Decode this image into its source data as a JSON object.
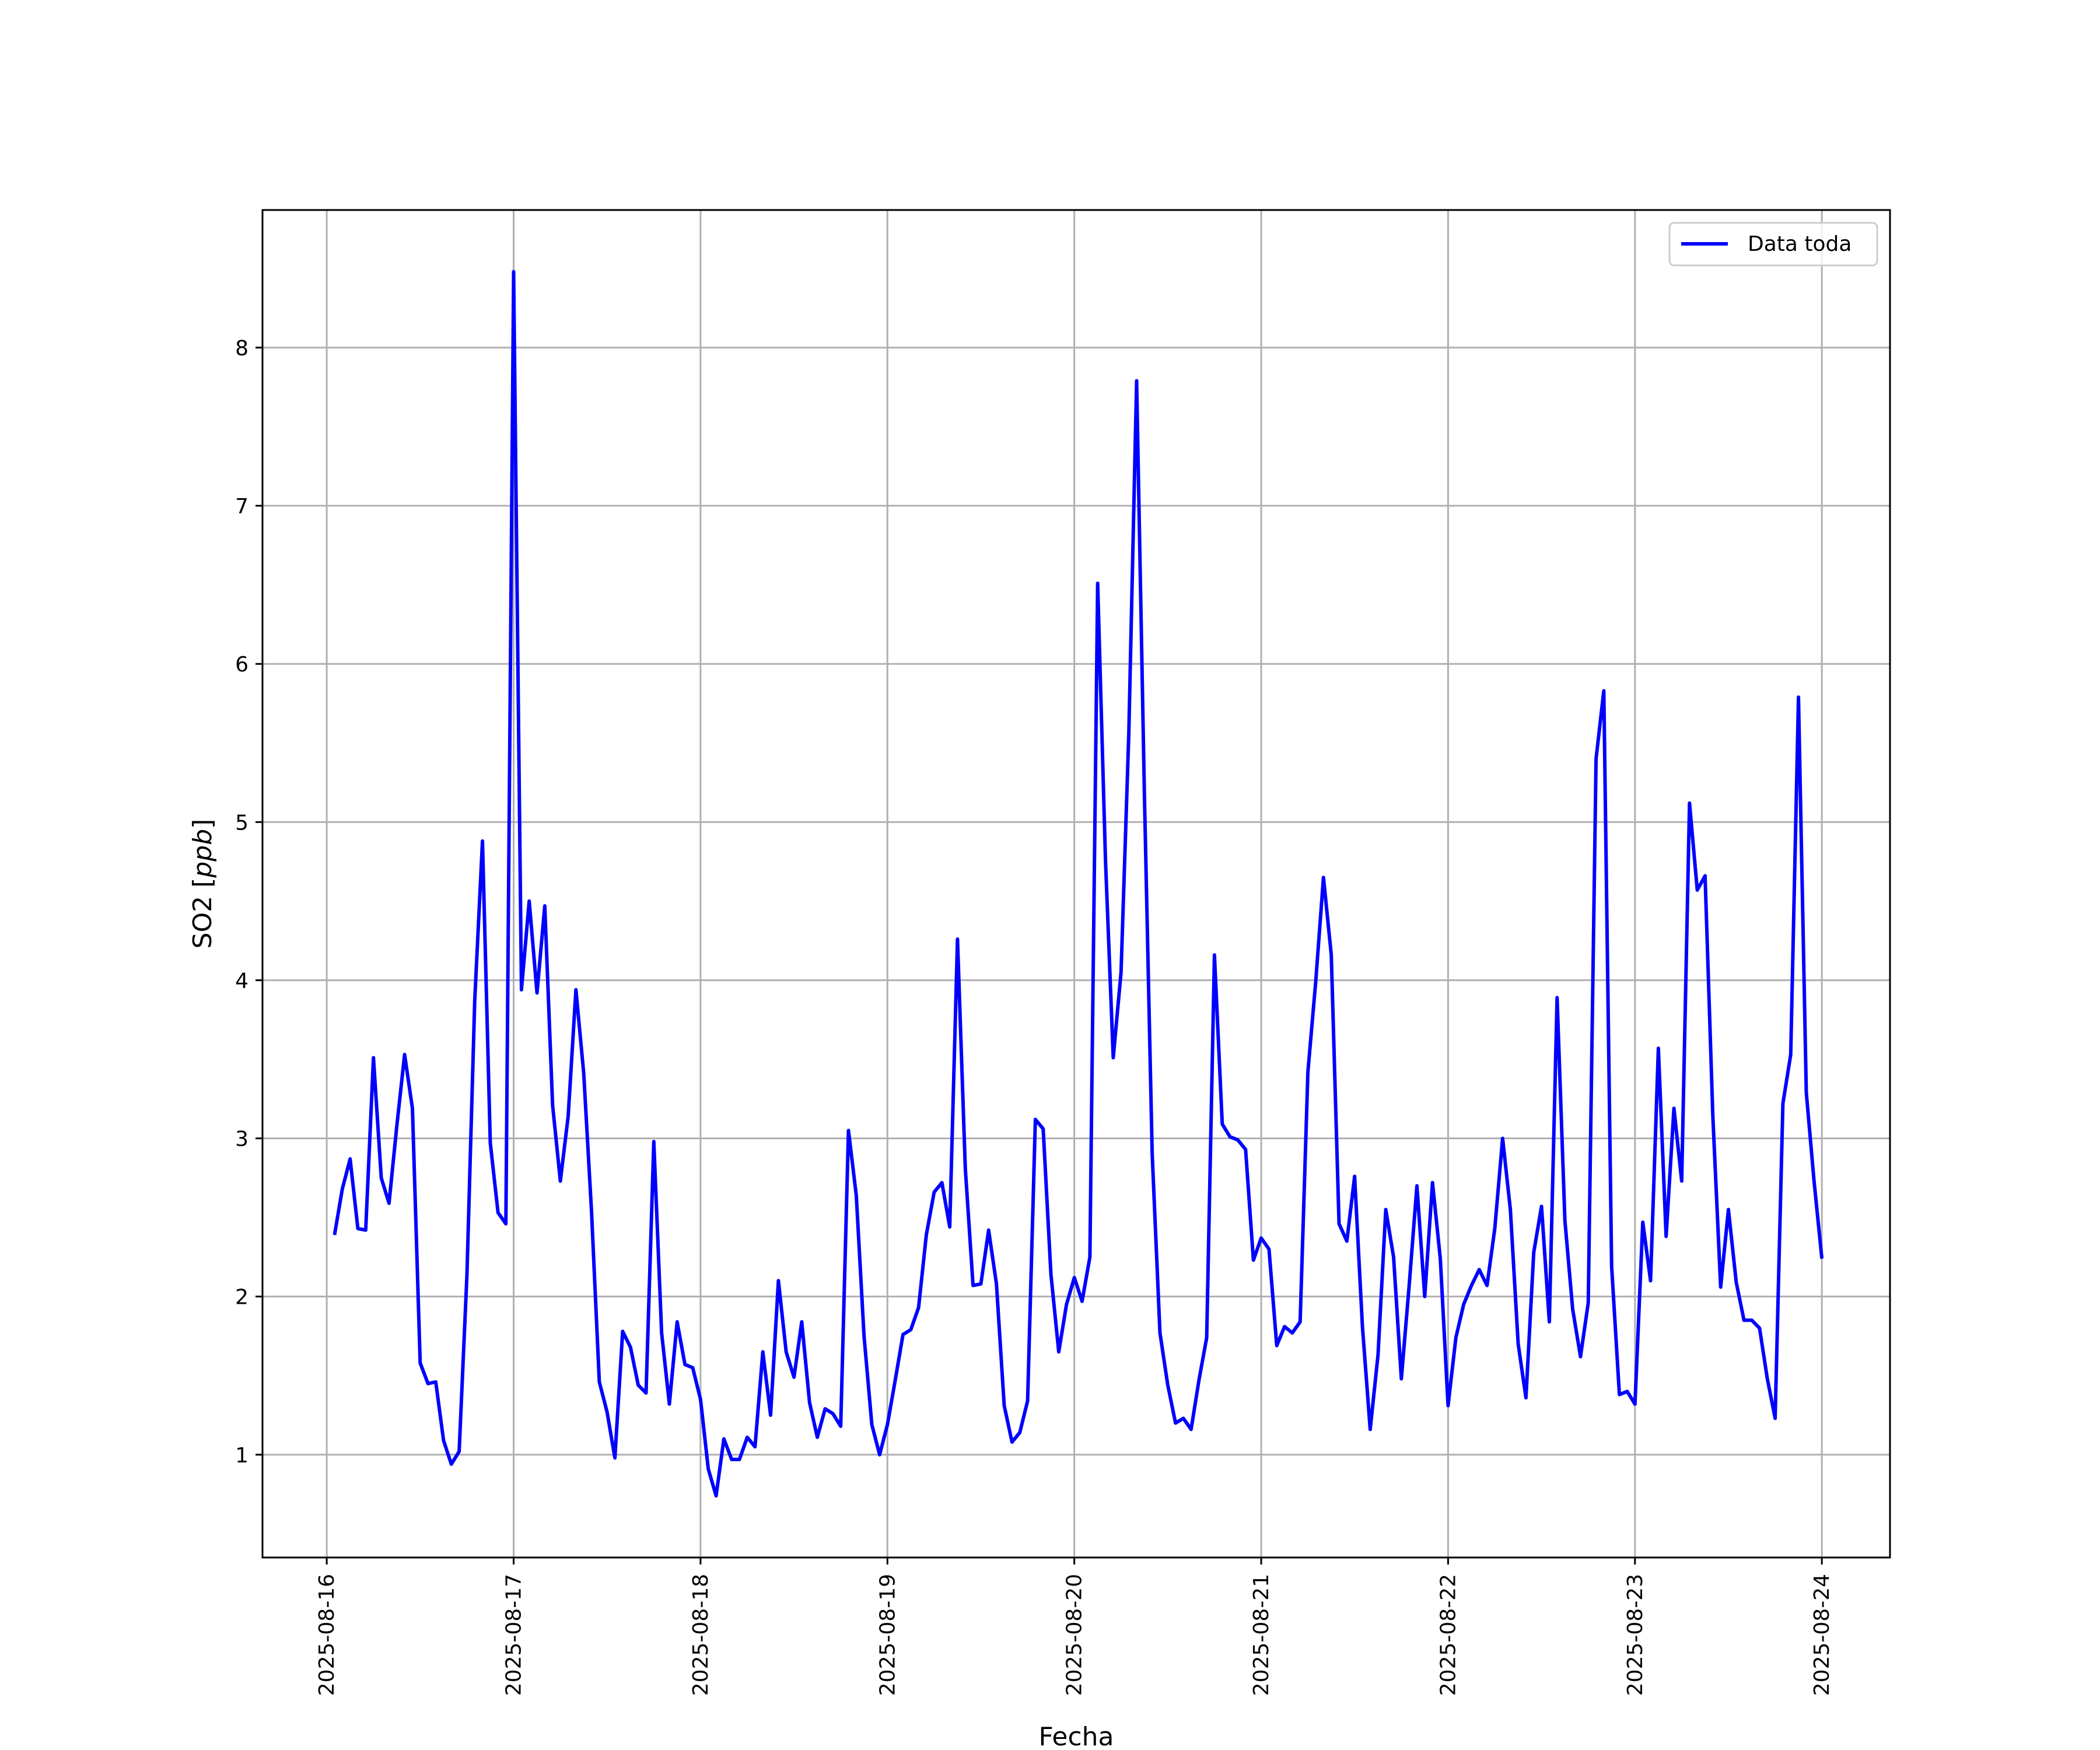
{
  "chart_data": {
    "type": "line",
    "title": "",
    "xlabel": "Fecha",
    "ylabel": "SO2 [ppb]",
    "ylabel_main": "SO2 ",
    "ylabel_unit": "ppb",
    "grid": true,
    "legend_position": "top-right",
    "x_ticks": [
      "2025-08-16",
      "2025-08-17",
      "2025-08-18",
      "2025-08-19",
      "2025-08-20",
      "2025-08-21",
      "2025-08-22",
      "2025-08-23",
      "2025-08-24"
    ],
    "y_ticks": [
      1,
      2,
      3,
      4,
      5,
      6,
      7,
      8
    ],
    "xlim": [
      "2025-08-15T15:45",
      "2025-08-24T08:45"
    ],
    "ylim": [
      0.35,
      8.87
    ],
    "series": [
      {
        "name": "Data toda",
        "color": "#0000ff",
        "x": [
          "2025-08-16T01:00",
          "2025-08-16T02:00",
          "2025-08-16T03:00",
          "2025-08-16T04:00",
          "2025-08-16T05:00",
          "2025-08-16T06:00",
          "2025-08-16T07:00",
          "2025-08-16T08:00",
          "2025-08-16T09:00",
          "2025-08-16T10:00",
          "2025-08-16T11:00",
          "2025-08-16T12:00",
          "2025-08-16T13:00",
          "2025-08-16T14:00",
          "2025-08-16T15:00",
          "2025-08-16T16:00",
          "2025-08-16T17:00",
          "2025-08-16T18:00",
          "2025-08-16T19:00",
          "2025-08-16T20:00",
          "2025-08-16T21:00",
          "2025-08-16T22:00",
          "2025-08-16T23:00",
          "2025-08-17T00:00",
          "2025-08-17T01:00",
          "2025-08-17T02:00",
          "2025-08-17T03:00",
          "2025-08-17T04:00",
          "2025-08-17T05:00",
          "2025-08-17T06:00",
          "2025-08-17T07:00",
          "2025-08-17T08:00",
          "2025-08-17T09:00",
          "2025-08-17T10:00",
          "2025-08-17T11:00",
          "2025-08-17T12:00",
          "2025-08-17T13:00",
          "2025-08-17T14:00",
          "2025-08-17T15:00",
          "2025-08-17T16:00",
          "2025-08-17T17:00",
          "2025-08-17T18:00",
          "2025-08-17T19:00",
          "2025-08-17T20:00",
          "2025-08-17T21:00",
          "2025-08-17T22:00",
          "2025-08-17T23:00",
          "2025-08-18T00:00",
          "2025-08-18T01:00",
          "2025-08-18T02:00",
          "2025-08-18T03:00",
          "2025-08-18T04:00",
          "2025-08-18T05:00",
          "2025-08-18T06:00",
          "2025-08-18T07:00",
          "2025-08-18T08:00",
          "2025-08-18T09:00",
          "2025-08-18T10:00",
          "2025-08-18T11:00",
          "2025-08-18T12:00",
          "2025-08-18T13:00",
          "2025-08-18T14:00",
          "2025-08-18T15:00",
          "2025-08-18T16:00",
          "2025-08-18T17:00",
          "2025-08-18T18:00",
          "2025-08-18T19:00",
          "2025-08-18T20:00",
          "2025-08-18T21:00",
          "2025-08-18T22:00",
          "2025-08-18T23:00",
          "2025-08-19T00:00",
          "2025-08-19T01:00",
          "2025-08-19T02:00",
          "2025-08-19T03:00",
          "2025-08-19T04:00",
          "2025-08-19T05:00",
          "2025-08-19T06:00",
          "2025-08-19T07:00",
          "2025-08-19T08:00",
          "2025-08-19T09:00",
          "2025-08-19T10:00",
          "2025-08-19T11:00",
          "2025-08-19T12:00",
          "2025-08-19T13:00",
          "2025-08-19T14:00",
          "2025-08-19T15:00",
          "2025-08-19T16:00",
          "2025-08-19T17:00",
          "2025-08-19T18:00",
          "2025-08-19T19:00",
          "2025-08-19T20:00",
          "2025-08-19T21:00",
          "2025-08-19T22:00",
          "2025-08-19T23:00",
          "2025-08-20T00:00",
          "2025-08-20T01:00",
          "2025-08-20T02:00",
          "2025-08-20T03:00",
          "2025-08-20T04:00",
          "2025-08-20T05:00",
          "2025-08-20T06:00",
          "2025-08-20T07:00",
          "2025-08-20T08:00",
          "2025-08-20T09:00",
          "2025-08-20T10:00",
          "2025-08-20T11:00",
          "2025-08-20T12:00",
          "2025-08-20T13:00",
          "2025-08-20T14:00",
          "2025-08-20T15:00",
          "2025-08-20T16:00",
          "2025-08-20T17:00",
          "2025-08-20T18:00",
          "2025-08-20T19:00",
          "2025-08-20T20:00",
          "2025-08-20T21:00",
          "2025-08-20T22:00",
          "2025-08-20T23:00",
          "2025-08-21T00:00",
          "2025-08-21T01:00",
          "2025-08-21T02:00",
          "2025-08-21T03:00",
          "2025-08-21T04:00",
          "2025-08-21T05:00",
          "2025-08-21T06:00",
          "2025-08-21T07:00",
          "2025-08-21T08:00",
          "2025-08-21T09:00",
          "2025-08-21T10:00",
          "2025-08-21T11:00",
          "2025-08-21T12:00",
          "2025-08-21T13:00",
          "2025-08-21T14:00",
          "2025-08-21T15:00",
          "2025-08-21T16:00",
          "2025-08-21T17:00",
          "2025-08-21T18:00",
          "2025-08-21T19:00",
          "2025-08-21T20:00",
          "2025-08-21T21:00",
          "2025-08-21T22:00",
          "2025-08-21T23:00",
          "2025-08-22T00:00",
          "2025-08-22T01:00",
          "2025-08-22T02:00",
          "2025-08-22T03:00",
          "2025-08-22T04:00",
          "2025-08-22T05:00",
          "2025-08-22T06:00",
          "2025-08-22T07:00",
          "2025-08-22T08:00",
          "2025-08-22T09:00",
          "2025-08-22T10:00",
          "2025-08-22T11:00",
          "2025-08-22T12:00",
          "2025-08-22T13:00",
          "2025-08-22T14:00",
          "2025-08-22T15:00",
          "2025-08-22T16:00",
          "2025-08-22T17:00",
          "2025-08-22T18:00",
          "2025-08-22T19:00",
          "2025-08-22T20:00",
          "2025-08-22T21:00",
          "2025-08-22T22:00",
          "2025-08-22T23:00",
          "2025-08-23T00:00",
          "2025-08-23T01:00",
          "2025-08-23T02:00",
          "2025-08-23T03:00",
          "2025-08-23T04:00",
          "2025-08-23T05:00",
          "2025-08-23T06:00",
          "2025-08-23T07:00",
          "2025-08-23T08:00",
          "2025-08-23T09:00",
          "2025-08-23T10:00",
          "2025-08-23T11:00",
          "2025-08-23T12:00",
          "2025-08-23T13:00",
          "2025-08-23T14:00",
          "2025-08-23T15:00",
          "2025-08-23T16:00",
          "2025-08-23T17:00",
          "2025-08-23T18:00",
          "2025-08-23T19:00",
          "2025-08-23T20:00",
          "2025-08-23T21:00",
          "2025-08-23T22:00",
          "2025-08-23T23:00",
          "2025-08-24T00:00"
        ],
        "values": [
          2.39,
          2.68,
          2.87,
          2.43,
          2.42,
          3.51,
          2.75,
          2.59,
          3.08,
          3.53,
          3.19,
          1.58,
          1.45,
          1.46,
          1.09,
          0.94,
          1.02,
          2.13,
          3.87,
          4.88,
          2.97,
          2.53,
          2.46,
          8.48,
          3.94,
          4.5,
          3.92,
          4.47,
          3.21,
          2.73,
          3.14,
          3.94,
          3.41,
          2.54,
          1.46,
          1.27,
          0.98,
          1.78,
          1.68,
          1.44,
          1.39,
          2.98,
          1.77,
          1.32,
          1.84,
          1.57,
          1.55,
          1.35,
          0.91,
          0.74,
          1.1,
          0.97,
          0.97,
          1.11,
          1.05,
          1.65,
          1.25,
          2.1,
          1.65,
          1.49,
          1.84,
          1.33,
          1.11,
          1.29,
          1.26,
          1.18,
          3.05,
          2.64,
          1.75,
          1.19,
          1.0,
          1.19,
          1.47,
          1.76,
          1.79,
          1.93,
          2.39,
          2.66,
          2.72,
          2.44,
          4.26,
          2.81,
          2.07,
          2.08,
          2.42,
          2.08,
          1.31,
          1.08,
          1.14,
          1.34,
          3.12,
          3.06,
          2.14,
          1.65,
          1.95,
          2.12,
          1.97,
          2.25,
          6.51,
          4.76,
          3.51,
          4.05,
          5.56,
          7.79,
          5.18,
          2.9,
          1.77,
          1.44,
          1.2,
          1.23,
          1.16,
          1.47,
          1.74,
          4.16,
          3.09,
          3.01,
          2.99,
          2.93,
          2.23,
          2.37,
          2.3,
          1.69,
          1.81,
          1.77,
          1.84,
          3.42,
          3.99,
          4.65,
          4.16,
          2.46,
          2.35,
          2.76,
          1.81,
          1.16,
          1.63,
          2.55,
          2.25,
          1.48,
          2.07,
          2.7,
          2.0,
          2.72,
          2.24,
          1.31,
          1.74,
          1.95,
          2.07,
          2.17,
          2.07,
          2.43,
          3.0,
          2.55,
          1.7,
          1.36,
          2.28,
          2.57,
          1.84,
          3.89,
          2.48,
          1.92,
          1.62,
          1.96,
          5.4,
          5.83,
          2.19,
          1.38,
          1.4,
          1.32,
          2.47,
          2.1,
          3.57,
          2.38,
          3.19,
          2.73,
          5.12,
          4.57,
          4.66,
          3.14,
          2.06,
          2.55,
          2.09,
          1.85,
          1.85,
          1.8,
          1.48,
          1.23,
          3.22,
          3.53,
          5.79,
          3.29,
          2.73,
          2.24
        ]
      }
    ]
  }
}
